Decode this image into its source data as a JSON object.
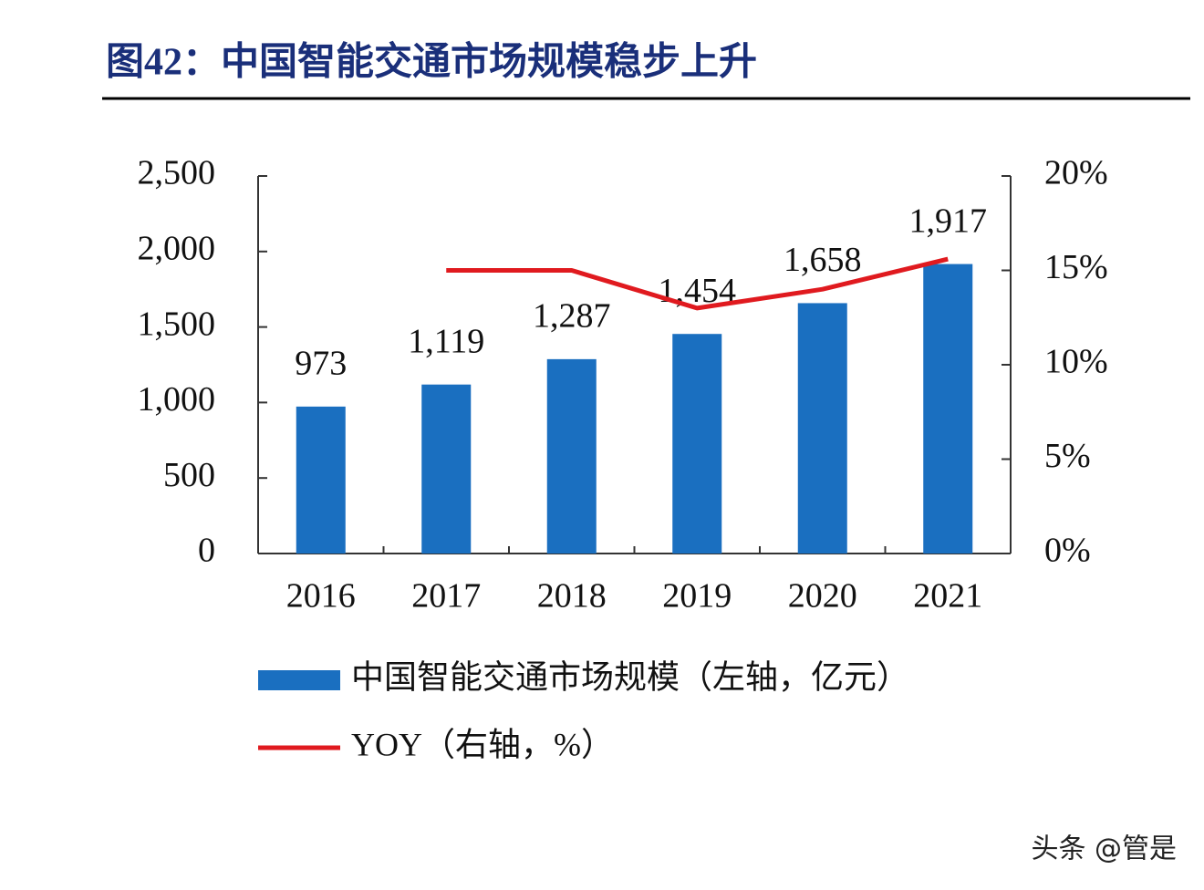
{
  "chart_data": {
    "type": "bar_line",
    "title": "图42：中国智能交通市场规模稳步上升",
    "categories": [
      "2016",
      "2017",
      "2018",
      "2019",
      "2020",
      "2021"
    ],
    "series": [
      {
        "name": "中国智能交通市场规模（左轴，亿元）",
        "type": "bar",
        "color": "#1a6fc0",
        "values": [
          973,
          1119,
          1287,
          1454,
          1658,
          1917
        ],
        "value_labels": [
          "973",
          "1,119",
          "1,287",
          "1,454",
          "1,658",
          "1,917"
        ]
      },
      {
        "name": "YOY（右轴，%）",
        "type": "line",
        "axis": "y2",
        "color": "#e01a1f",
        "values": [
          null,
          15.0,
          15.0,
          13.0,
          14.0,
          15.6
        ]
      }
    ],
    "ylim": [
      0,
      2500
    ],
    "yticks": [
      0,
      500,
      {
        "value": 1000,
        "label": "1,000"
      },
      {
        "value": 1500,
        "label": "1,500"
      },
      {
        "value": 2000,
        "label": "2,000"
      },
      {
        "value": 2500,
        "label": "2,500"
      }
    ],
    "y2lim": [
      0,
      20
    ],
    "y2ticks": [
      {
        "value": 0,
        "label": "0%"
      },
      {
        "value": 5,
        "label": "5%"
      },
      {
        "value": 10,
        "label": "10%"
      },
      {
        "value": 15,
        "label": "15%"
      },
      {
        "value": 20,
        "label": "20%"
      }
    ],
    "watermark": "头条 @管是"
  }
}
